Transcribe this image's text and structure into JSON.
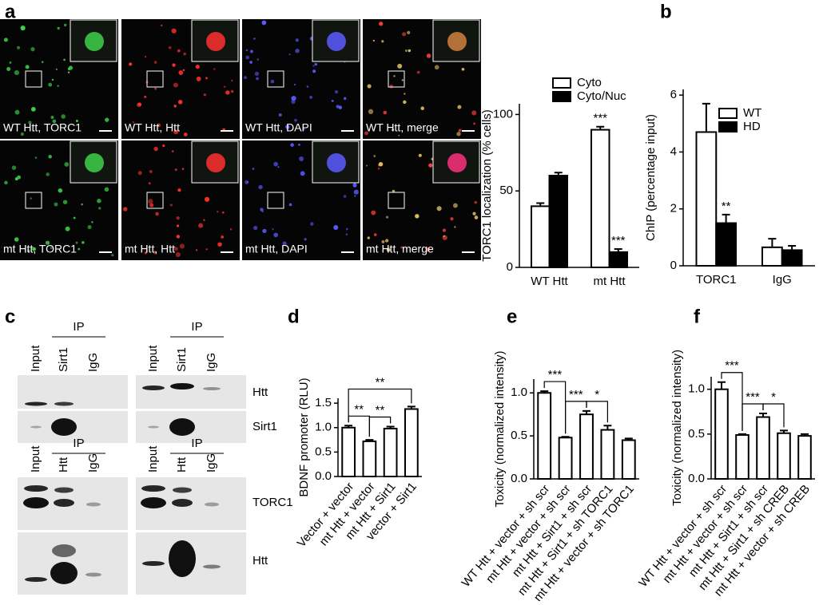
{
  "panel_labels": [
    "a",
    "b",
    "c",
    "d",
    "e",
    "f"
  ],
  "micrographs": [
    "WT Htt, TORC1",
    "WT Htt, Htt",
    "WT Htt, DAPI",
    "WT Htt, merge",
    "mt Htt, TORC1",
    "mt Htt, Htt",
    "mt Htt, DAPI",
    "mt Htt, merge"
  ],
  "blots": {
    "ip_label": "IP",
    "top_lanes": [
      [
        "Input",
        "Sirt1",
        "IgG"
      ],
      [
        "Input",
        "Sirt1",
        "IgG"
      ]
    ],
    "top_rows": [
      "Htt",
      "Sirt1"
    ],
    "bottom_lanes": [
      [
        "Input",
        "Htt",
        "IgG"
      ],
      [
        "Input",
        "Htt",
        "IgG"
      ]
    ],
    "bottom_rows": [
      "TORC1",
      "Htt"
    ]
  },
  "chart_data": [
    {
      "type": "bar",
      "ylabel": "TORC1 localization (% cells)",
      "categories": [
        "WT Htt",
        "mt Htt"
      ],
      "series": [
        {
          "name": "Cyto",
          "color": "#ffffff",
          "values": [
            40,
            90
          ],
          "errors": [
            2,
            2
          ]
        },
        {
          "name": "Cyto/Nuc",
          "color": "#000000",
          "values": [
            60,
            10
          ],
          "errors": [
            2,
            2
          ]
        }
      ],
      "ylim": [
        0,
        107
      ],
      "yticks": [
        0,
        50,
        100
      ],
      "annotations": [
        "***",
        "***"
      ]
    },
    {
      "type": "bar",
      "ylabel": "ChIP (percentage input)",
      "categories": [
        "TORC1",
        "IgG"
      ],
      "series": [
        {
          "name": "WT",
          "color": "#ffffff",
          "values": [
            4.7,
            0.65
          ],
          "errors": [
            1.0,
            0.3
          ]
        },
        {
          "name": "HD",
          "color": "#000000",
          "values": [
            1.5,
            0.55
          ],
          "errors": [
            0.3,
            0.15
          ]
        }
      ],
      "ylim": [
        0,
        6.2
      ],
      "yticks": [
        0,
        2,
        4,
        6
      ],
      "annotations": [
        "**"
      ]
    },
    {
      "type": "bar",
      "ylabel": "BDNF promoter (RLU)",
      "categories": [
        "Vector + vector",
        "mt Htt + vector",
        "mt Htt + Sirt1",
        "vector + Sirt1"
      ],
      "values": [
        1.0,
        0.72,
        0.98,
        1.38
      ],
      "errors": [
        0.04,
        0.03,
        0.04,
        0.05
      ],
      "color": "#ffffff",
      "ylim": [
        0,
        1.6
      ],
      "yticks": [
        {
          "value": 0,
          "label": "0.0"
        },
        0.5,
        {
          "value": 1,
          "label": "1.0"
        },
        1.5
      ],
      "annotations": [
        "**",
        "**",
        "**"
      ]
    },
    {
      "type": "bar",
      "ylabel": "Toxicity (normalized intensity)",
      "categories": [
        "WT Htt + vector + sh scr",
        "mt Htt + vector + sh scr",
        "mt Htt + Sirt1 + sh scr",
        "mt Htt + Sirt1 + sh TORC1",
        "mt Htt + vector + sh TORC1"
      ],
      "values": [
        1.0,
        0.48,
        0.75,
        0.57,
        0.45
      ],
      "errors": [
        0.02,
        0.01,
        0.04,
        0.05,
        0.02
      ],
      "color": "#ffffff",
      "ylim": [
        0,
        1.16
      ],
      "yticks": [
        {
          "value": 0,
          "label": "0.0"
        },
        0.5,
        {
          "value": 1,
          "label": "1.0"
        }
      ],
      "annotations": [
        "***",
        "***",
        "*"
      ]
    },
    {
      "type": "bar",
      "ylabel": "Toxicity (normalized intensity)",
      "categories": [
        "WT Htt + vector + sh scr",
        "mt Htt + vector + sh scr",
        "mt Htt + Sirt1 + sh scr",
        "mt Htt + Sirt1 + sh CREB",
        "mt Htt + vector + sh CREB"
      ],
      "values": [
        1.0,
        0.49,
        0.69,
        0.51,
        0.48
      ],
      "errors": [
        0.08,
        0.01,
        0.04,
        0.03,
        0.02
      ],
      "color": "#ffffff",
      "ylim": [
        0,
        1.14
      ],
      "yticks": [
        {
          "value": 0,
          "label": "0.0"
        },
        0.5,
        {
          "value": 1,
          "label": "1.0"
        }
      ],
      "annotations": [
        "***",
        "***",
        "*"
      ]
    }
  ]
}
